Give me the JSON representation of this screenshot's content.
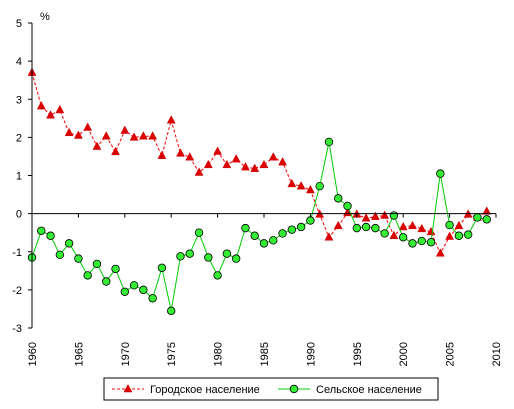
{
  "chart_data": {
    "type": "line",
    "unit_label": "%",
    "ylim": [
      -3,
      5
    ],
    "yticks": [
      -3,
      -2,
      -1,
      0,
      1,
      2,
      3,
      4,
      5
    ],
    "xlim": [
      1960,
      2010
    ],
    "xticks": [
      1960,
      1965,
      1970,
      1975,
      1980,
      1985,
      1990,
      1995,
      2000,
      2005,
      2010
    ],
    "grid": false,
    "legend_position": "bottom",
    "x": [
      1960,
      1961,
      1962,
      1963,
      1964,
      1965,
      1966,
      1967,
      1968,
      1969,
      1970,
      1971,
      1972,
      1973,
      1974,
      1975,
      1976,
      1977,
      1978,
      1979,
      1980,
      1981,
      1982,
      1983,
      1984,
      1985,
      1986,
      1987,
      1988,
      1989,
      1990,
      1991,
      1992,
      1993,
      1994,
      1995,
      1996,
      1997,
      1998,
      1999,
      2000,
      2001,
      2002,
      2003,
      2004,
      2005,
      2006,
      2007,
      2008,
      2009
    ],
    "series": [
      {
        "name": "Городское население",
        "color": "#ff0000",
        "marker": "triangle",
        "line_style": "dashed",
        "values": [
          3.7,
          2.82,
          2.58,
          2.72,
          2.12,
          2.05,
          2.26,
          1.76,
          2.03,
          1.62,
          2.18,
          2.0,
          2.03,
          2.03,
          1.52,
          2.45,
          1.58,
          1.48,
          1.08,
          1.28,
          1.63,
          1.28,
          1.43,
          1.22,
          1.18,
          1.28,
          1.48,
          1.35,
          0.78,
          0.72,
          0.62,
          -0.02,
          -0.62,
          -0.32,
          0.02,
          -0.02,
          -0.12,
          -0.08,
          -0.05,
          -0.58,
          -0.35,
          -0.32,
          -0.4,
          -0.48,
          -1.04,
          -0.6,
          -0.32,
          -0.02,
          -0.1,
          0.06
        ]
      },
      {
        "name": "Сельское население",
        "color": "#00cc00",
        "marker": "circle",
        "line_style": "solid",
        "values": [
          -1.15,
          -0.45,
          -0.58,
          -1.08,
          -0.78,
          -1.18,
          -1.62,
          -1.32,
          -1.78,
          -1.45,
          -2.05,
          -1.88,
          -2.0,
          -2.22,
          -1.42,
          -2.55,
          -1.12,
          -1.05,
          -0.5,
          -1.15,
          -1.62,
          -1.05,
          -1.18,
          -0.38,
          -0.58,
          -0.78,
          -0.7,
          -0.52,
          -0.42,
          -0.35,
          -0.18,
          0.72,
          1.88,
          0.4,
          0.2,
          -0.38,
          -0.35,
          -0.38,
          -0.52,
          -0.05,
          -0.62,
          -0.78,
          -0.72,
          -0.75,
          1.05,
          -0.3,
          -0.58,
          -0.55,
          -0.1,
          -0.15
        ]
      }
    ]
  }
}
